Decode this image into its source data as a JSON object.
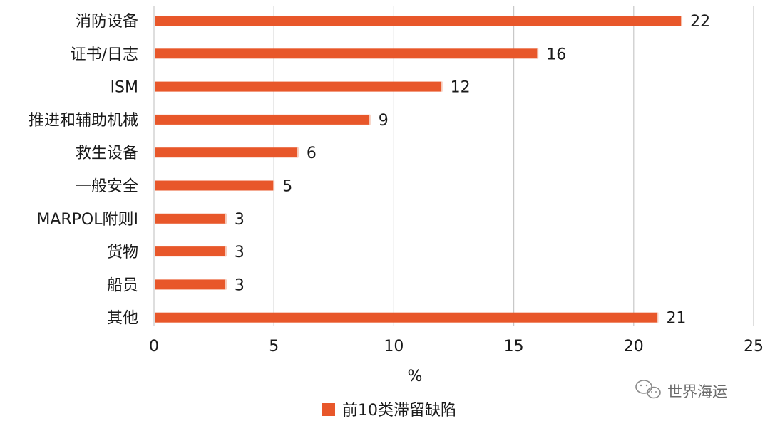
{
  "chart_data": {
    "type": "bar",
    "orientation": "horizontal",
    "categories": [
      "消防设备",
      "证书/日志",
      "ISM",
      "推进和辅助机械",
      "救生设备",
      "一般安全",
      "MARPOL附则Ⅰ",
      "货物",
      "船员",
      "其他"
    ],
    "series": [
      {
        "name": "前10类滞留缺陷",
        "values": [
          22,
          16,
          12,
          9,
          6,
          5,
          3,
          3,
          3,
          21
        ]
      }
    ],
    "xlabel": "%",
    "ylabel": "",
    "xlim": [
      0,
      25
    ],
    "xticks": [
      0,
      5,
      10,
      15,
      20,
      25
    ],
    "grid": "vertical",
    "legend": "bottom-center",
    "colors": {
      "bar": "#e8572a",
      "grid": "#c8c8c8"
    }
  },
  "watermark": {
    "text": "世界海运",
    "icon": "wechat-icon"
  }
}
